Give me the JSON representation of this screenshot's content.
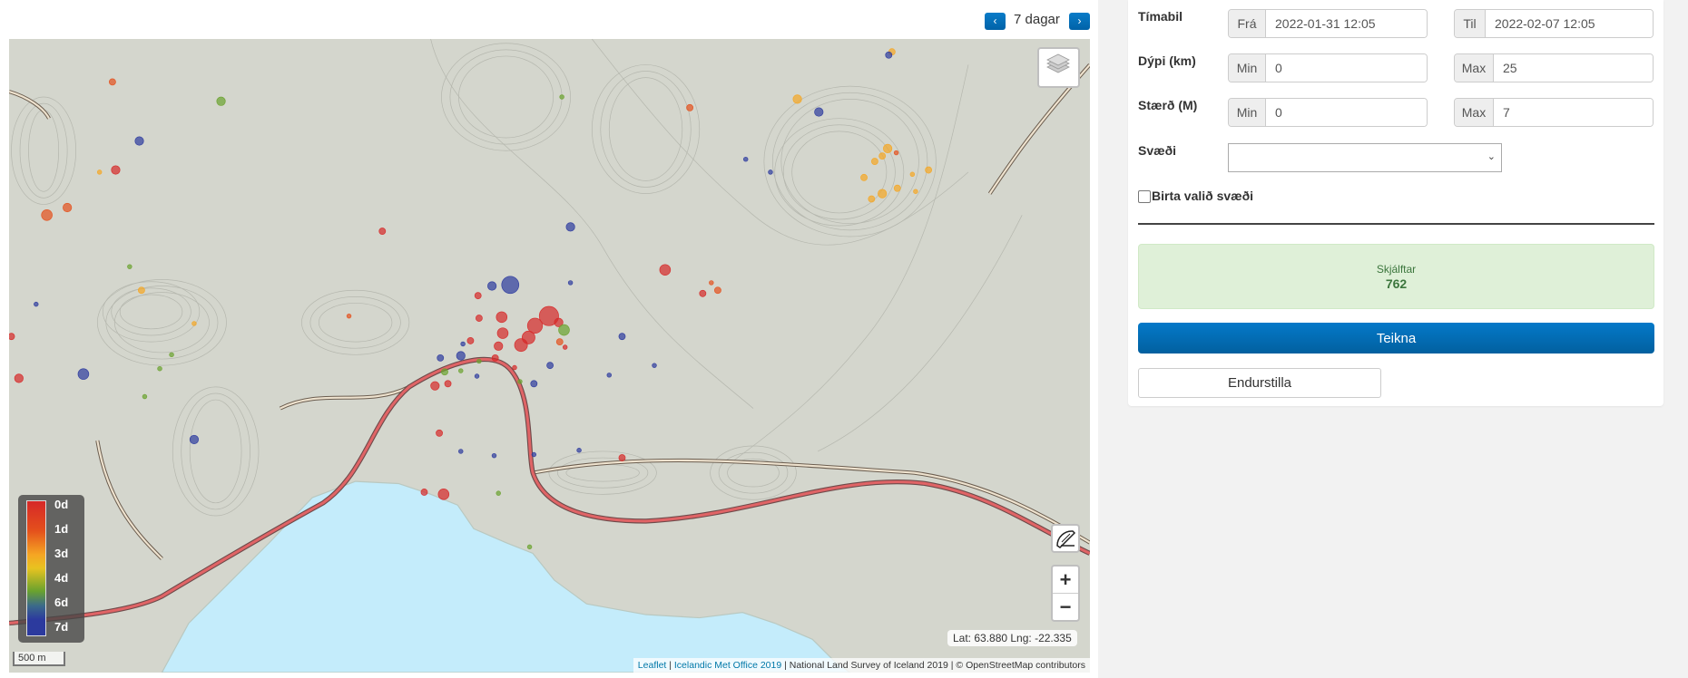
{
  "nav": {
    "prev_icon": "chevron-left-icon",
    "next_icon": "chevron-right-icon",
    "period_label": "7 dagar",
    "prev_glyph": "‹",
    "next_glyph": "›"
  },
  "map": {
    "legend": {
      "labels": [
        "0d",
        "1d",
        "3d",
        "4d",
        "6d",
        "7d"
      ],
      "colors": [
        "#d62828",
        "#e4501c",
        "#f5a623",
        "#6aa22e",
        "#3b6a8a",
        "#2c3a9e"
      ]
    },
    "scale_label": "500 m",
    "cursor_readout": "Lat: 63.880 Lng: -22.335",
    "zoom_in": "+",
    "zoom_out": "−",
    "attribution": {
      "leaflet": "Leaflet",
      "imo": "Icelandic Met Office 2019",
      "rest": " | National Land Survey of Iceland 2019 | © OpenStreetMap contributors",
      "sep": " | "
    },
    "lake_color": "#c4ecfb",
    "road_color": "#e06466"
  },
  "form": {
    "timabil": {
      "label": "Tímabil",
      "from_addon": "Frá",
      "from_value": "2022-01-31 12:05",
      "to_addon": "Til",
      "to_value": "2022-02-07 12:05"
    },
    "depth": {
      "label": "Dýpi (km)",
      "min_addon": "Min",
      "min_value": "0",
      "max_addon": "Max",
      "max_value": "25"
    },
    "magnitude": {
      "label": "Stærð (M)",
      "min_addon": "Min",
      "min_value": "0",
      "max_addon": "Max",
      "max_value": "7"
    },
    "region": {
      "label": "Svæði",
      "value": ""
    },
    "show_region": {
      "label": "Birta valið svæði",
      "checked": false
    },
    "count": {
      "label": "Skjálftar",
      "value": "762"
    },
    "draw_button": "Teikna",
    "reset_button": "Endurstilla"
  }
}
